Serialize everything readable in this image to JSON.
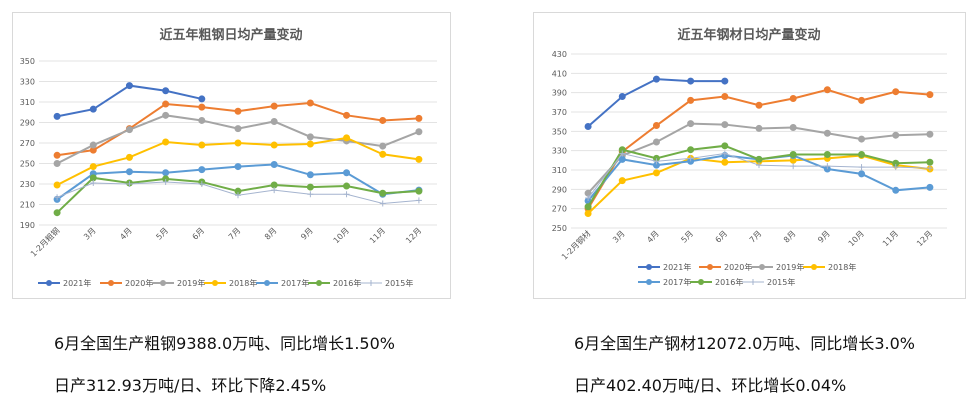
{
  "captions": {
    "left_line1": "6月全国生产粗钢9388.0万吨、同比增长1.50%",
    "left_line2": "日产312.93万吨/日、环比下降2.45%",
    "right_line1": "6月全国生产钢材12072.0万吨、同比增长3.0%",
    "right_line2": "日产402.40万吨/日、环比增长0.04%"
  },
  "chart_data": [
    {
      "type": "line",
      "title": "近五年粗钢日均产量变动",
      "categories": [
        "1-2月粗钢",
        "3月",
        "4月",
        "5月",
        "6月",
        "7月",
        "8月",
        "9月",
        "10月",
        "11月",
        "12月"
      ],
      "ylim": [
        190,
        350
      ],
      "yticks": [
        190,
        210,
        230,
        250,
        270,
        290,
        310,
        330,
        350
      ],
      "grid": true,
      "legend": "bottom",
      "series": [
        {
          "name": "2021年",
          "color": "#4472c4",
          "marker": "circle",
          "values": [
            296,
            303,
            326,
            321,
            313,
            null,
            null,
            null,
            null,
            null,
            null
          ]
        },
        {
          "name": "2020年",
          "color": "#ed7d31",
          "marker": "circle",
          "values": [
            258,
            263,
            284,
            308,
            305,
            301,
            306,
            309,
            297,
            292,
            294
          ]
        },
        {
          "name": "2019年",
          "color": "#a5a5a5",
          "marker": "circle",
          "values": [
            250,
            268,
            283,
            297,
            292,
            284,
            291,
            276,
            272,
            267,
            281
          ]
        },
        {
          "name": "2018年",
          "color": "#ffc000",
          "marker": "circle",
          "values": [
            229,
            247,
            256,
            271,
            268,
            270,
            268,
            269,
            275,
            259,
            254
          ]
        },
        {
          "name": "2017年",
          "color": "#5b9bd5",
          "marker": "circle",
          "values": [
            215,
            240,
            242,
            241,
            244,
            247,
            249,
            239,
            241,
            220,
            224
          ]
        },
        {
          "name": "2016年",
          "color": "#70ad47",
          "marker": "circle",
          "values": [
            202,
            236,
            231,
            235,
            232,
            223,
            229,
            227,
            228,
            221,
            223
          ]
        },
        {
          "name": "2015年",
          "color": "#a5b4cf",
          "marker": "plus",
          "values": [
            217,
            231,
            230,
            232,
            230,
            219,
            224,
            220,
            220,
            211,
            214
          ]
        }
      ]
    },
    {
      "type": "line",
      "title": "近五年钢材日均产量变动",
      "categories": [
        "1-2月钢材",
        "3月",
        "4月",
        "5月",
        "6月",
        "7月",
        "8月",
        "9月",
        "10月",
        "11月",
        "12月"
      ],
      "ylim": [
        250,
        430
      ],
      "yticks": [
        250,
        270,
        290,
        310,
        330,
        350,
        370,
        390,
        410,
        430
      ],
      "grid": true,
      "legend": "bottom",
      "series": [
        {
          "name": "2021年",
          "color": "#4472c4",
          "marker": "circle",
          "values": [
            355,
            386,
            404,
            402,
            402,
            null,
            null,
            null,
            null,
            null,
            null
          ]
        },
        {
          "name": "2020年",
          "color": "#ed7d31",
          "marker": "circle",
          "values": [
            270,
            329,
            356,
            382,
            386,
            377,
            384,
            393,
            382,
            391,
            388
          ]
        },
        {
          "name": "2019年",
          "color": "#a5a5a5",
          "marker": "circle",
          "values": [
            286,
            325,
            339,
            358,
            357,
            353,
            354,
            348,
            342,
            346,
            347
          ]
        },
        {
          "name": "2018年",
          "color": "#ffc000",
          "marker": "circle",
          "values": [
            265,
            299,
            307,
            322,
            318,
            319,
            320,
            322,
            325,
            315,
            311
          ]
        },
        {
          "name": "2017年",
          "color": "#5b9bd5",
          "marker": "circle",
          "values": [
            278,
            321,
            315,
            319,
            325,
            321,
            325,
            311,
            306,
            289,
            292
          ]
        },
        {
          "name": "2016年",
          "color": "#70ad47",
          "marker": "circle",
          "values": [
            272,
            331,
            322,
            331,
            335,
            321,
            326,
            326,
            326,
            317,
            318
          ]
        },
        {
          "name": "2015年",
          "color": "#a5b4cf",
          "marker": "plus",
          "values": [
            281,
            327,
            319,
            322,
            327,
            315,
            314,
            314,
            313,
            313,
            312
          ]
        }
      ]
    }
  ]
}
